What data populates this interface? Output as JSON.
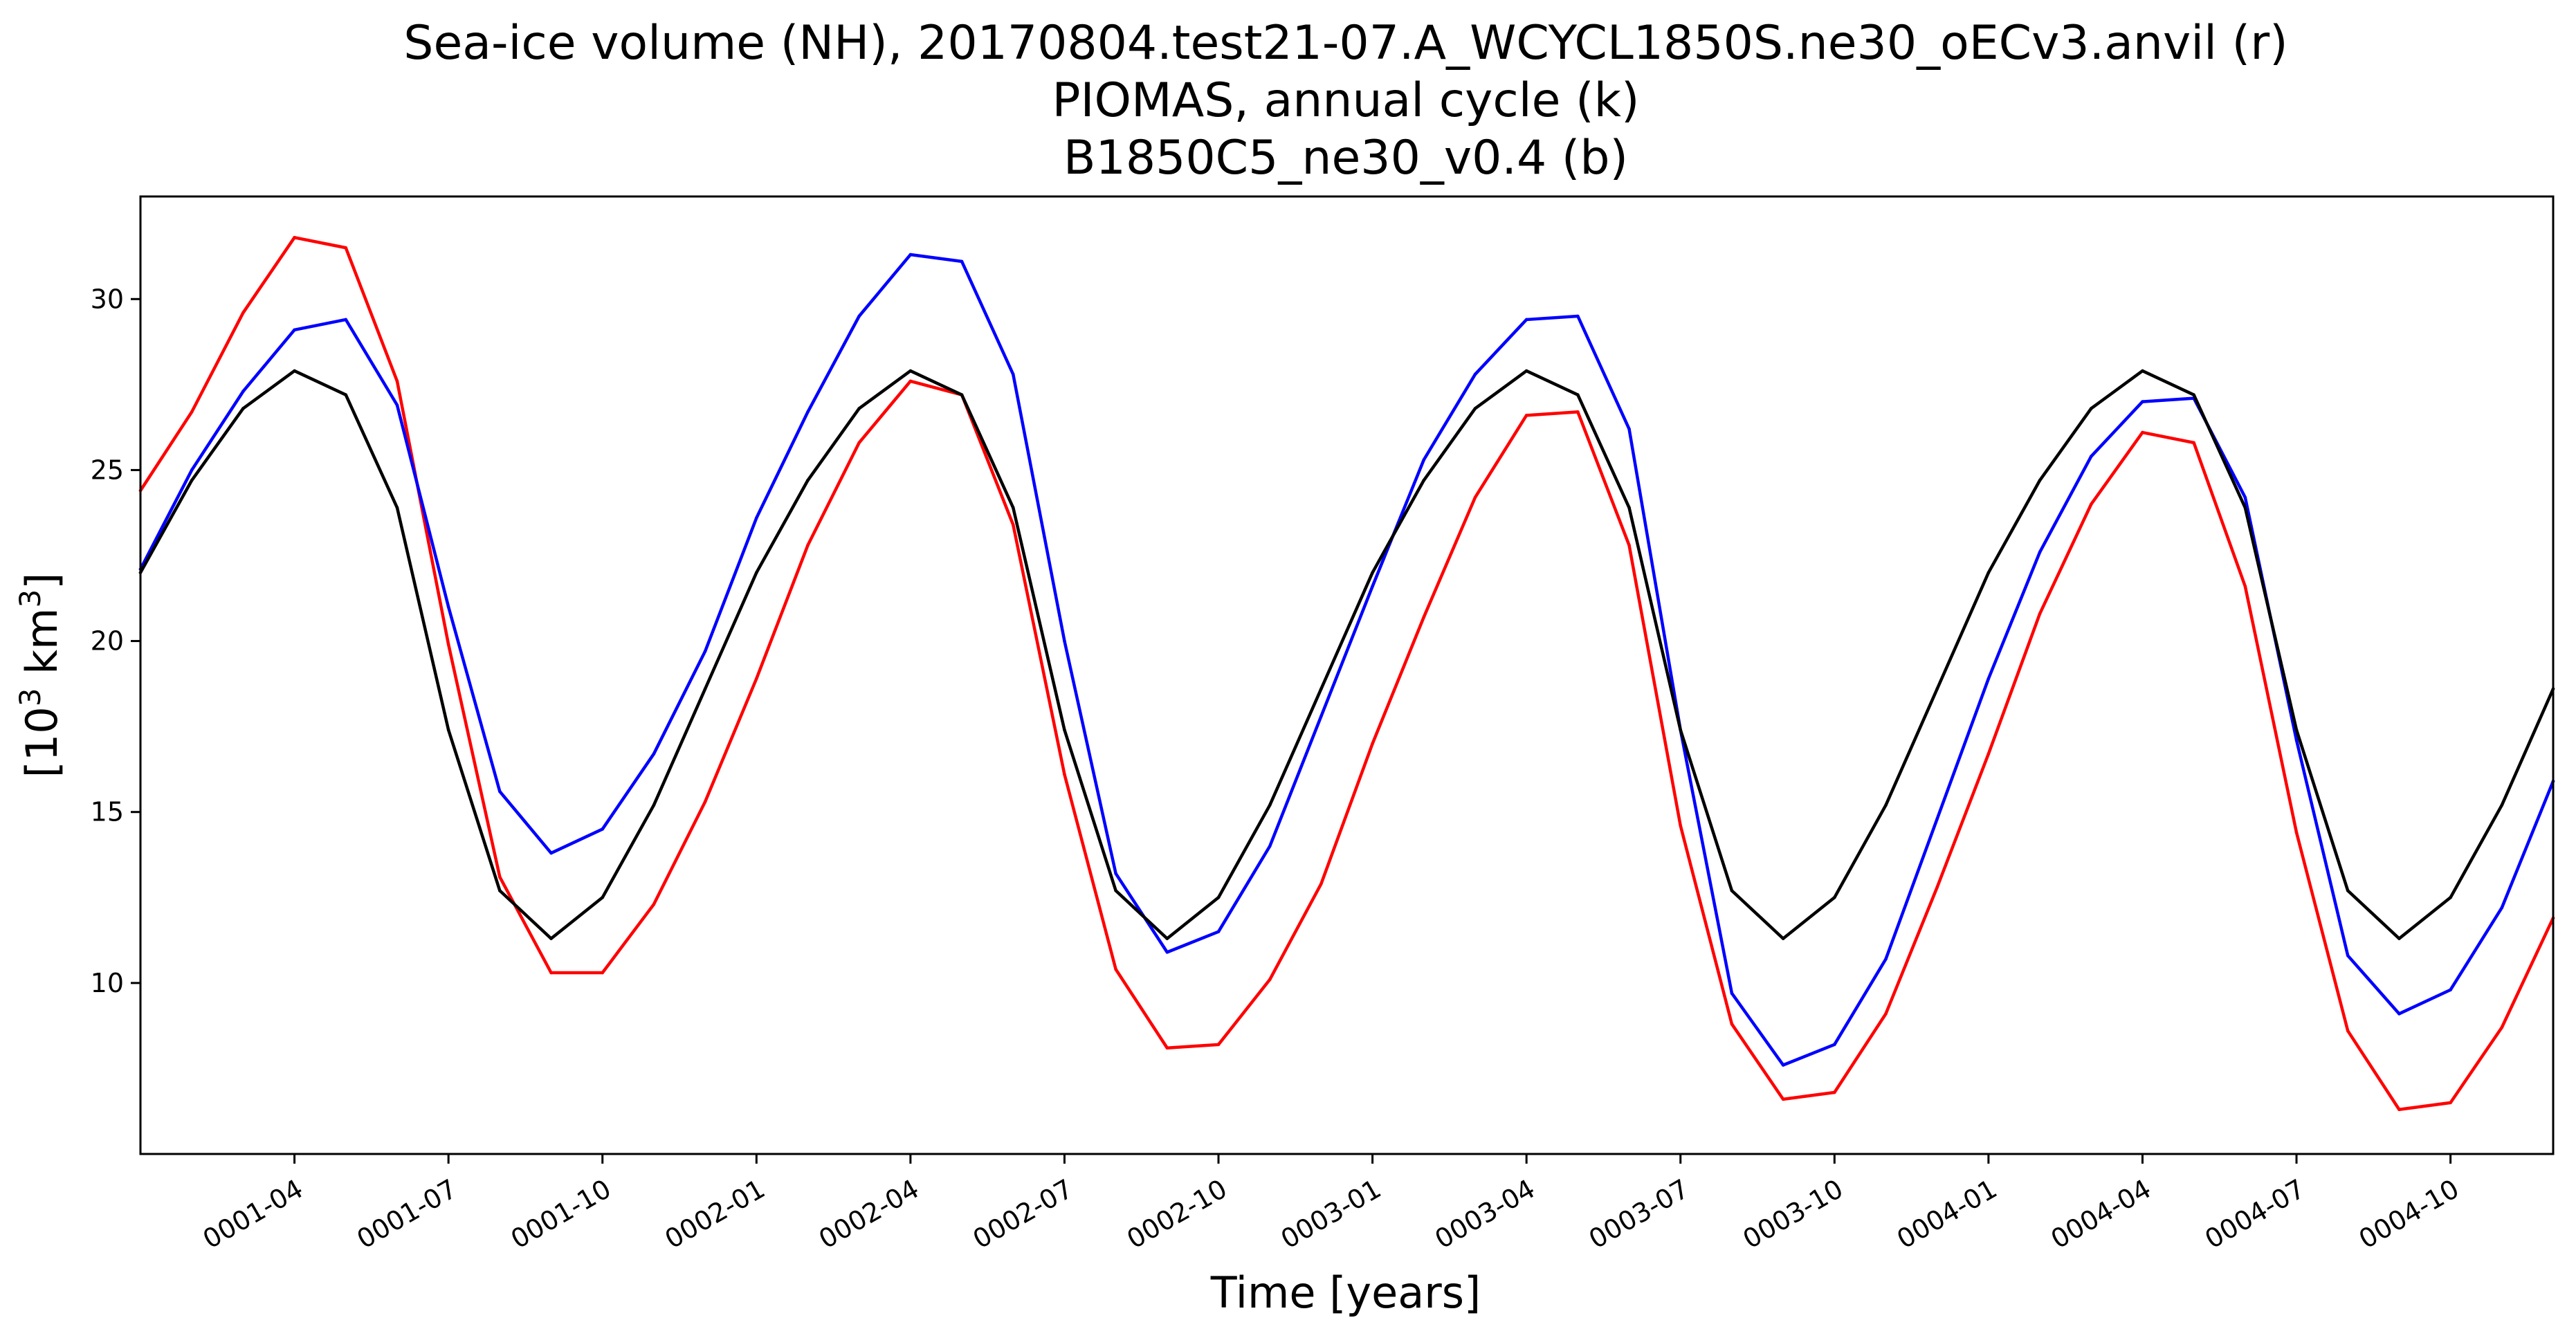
{
  "chart_data": {
    "type": "line",
    "title_lines": [
      "Sea-ice volume (NH), 20170804.test21-07.A_WCYCL1850S.ne30_oECv3.anvil (r)",
      "PIOMAS, annual cycle (k)",
      "B1850C5_ne30_v0.4 (b)"
    ],
    "xlabel": "Time [years]",
    "ylabel_parts": {
      "base": "[10",
      "sup": "3",
      "unit": " km",
      "unit_sup": "3",
      "close": "]"
    },
    "x_month_start": 1,
    "x_month_end": 48,
    "ylim": [
      5.0,
      33.0
    ],
    "yticks": [
      10,
      15,
      20,
      25,
      30
    ],
    "xticks": [
      {
        "month": 4,
        "label": "0001-04"
      },
      {
        "month": 7,
        "label": "0001-07"
      },
      {
        "month": 10,
        "label": "0001-10"
      },
      {
        "month": 13,
        "label": "0002-01"
      },
      {
        "month": 16,
        "label": "0002-04"
      },
      {
        "month": 19,
        "label": "0002-07"
      },
      {
        "month": 22,
        "label": "0002-10"
      },
      {
        "month": 25,
        "label": "0003-01"
      },
      {
        "month": 28,
        "label": "0003-04"
      },
      {
        "month": 31,
        "label": "0003-07"
      },
      {
        "month": 34,
        "label": "0003-10"
      },
      {
        "month": 37,
        "label": "0004-01"
      },
      {
        "month": 40,
        "label": "0004-04"
      },
      {
        "month": 43,
        "label": "0004-07"
      },
      {
        "month": 46,
        "label": "0004-10"
      }
    ],
    "grid": false,
    "legend": "none",
    "series": [
      {
        "color": "#ff0000",
        "values": [
          24.4,
          26.7,
          29.6,
          31.8,
          31.5,
          27.6,
          19.9,
          13.1,
          10.3,
          10.3,
          12.3,
          15.3,
          18.9,
          22.8,
          25.8,
          27.6,
          27.2,
          23.4,
          16.1,
          10.4,
          8.1,
          8.2,
          10.1,
          12.9,
          17.0,
          20.7,
          24.2,
          26.6,
          26.7,
          22.8,
          14.6,
          8.8,
          6.6,
          6.8,
          9.1,
          12.8,
          16.7,
          20.8,
          24.0,
          26.1,
          25.8,
          21.6,
          14.4,
          8.6,
          6.3,
          6.5,
          8.7,
          11.9
        ]
      },
      {
        "color": "#0000ff",
        "values": [
          22.1,
          25.0,
          27.3,
          29.1,
          29.4,
          26.9,
          21.0,
          15.6,
          13.8,
          14.5,
          16.7,
          19.7,
          23.6,
          26.7,
          29.5,
          31.3,
          31.1,
          27.8,
          20.0,
          13.2,
          10.9,
          11.5,
          14.0,
          17.8,
          21.6,
          25.3,
          27.8,
          29.4,
          29.5,
          26.2,
          17.4,
          9.7,
          7.6,
          8.2,
          10.7,
          14.8,
          18.9,
          22.6,
          25.4,
          27.0,
          27.1,
          24.2,
          17.1,
          10.8,
          9.1,
          9.8,
          12.2,
          15.9
        ]
      },
      {
        "color": "#000000",
        "values": [
          22.0,
          24.7,
          26.8,
          27.9,
          27.2,
          23.9,
          17.4,
          12.7,
          11.3,
          12.5,
          15.2,
          18.6,
          22.0,
          24.7,
          26.8,
          27.9,
          27.2,
          23.9,
          17.4,
          12.7,
          11.3,
          12.5,
          15.2,
          18.6,
          22.0,
          24.7,
          26.8,
          27.9,
          27.2,
          23.9,
          17.4,
          12.7,
          11.3,
          12.5,
          15.2,
          18.6,
          22.0,
          24.7,
          26.8,
          27.9,
          27.2,
          23.9,
          17.4,
          12.7,
          11.3,
          12.5,
          15.2,
          18.6
        ]
      }
    ]
  }
}
